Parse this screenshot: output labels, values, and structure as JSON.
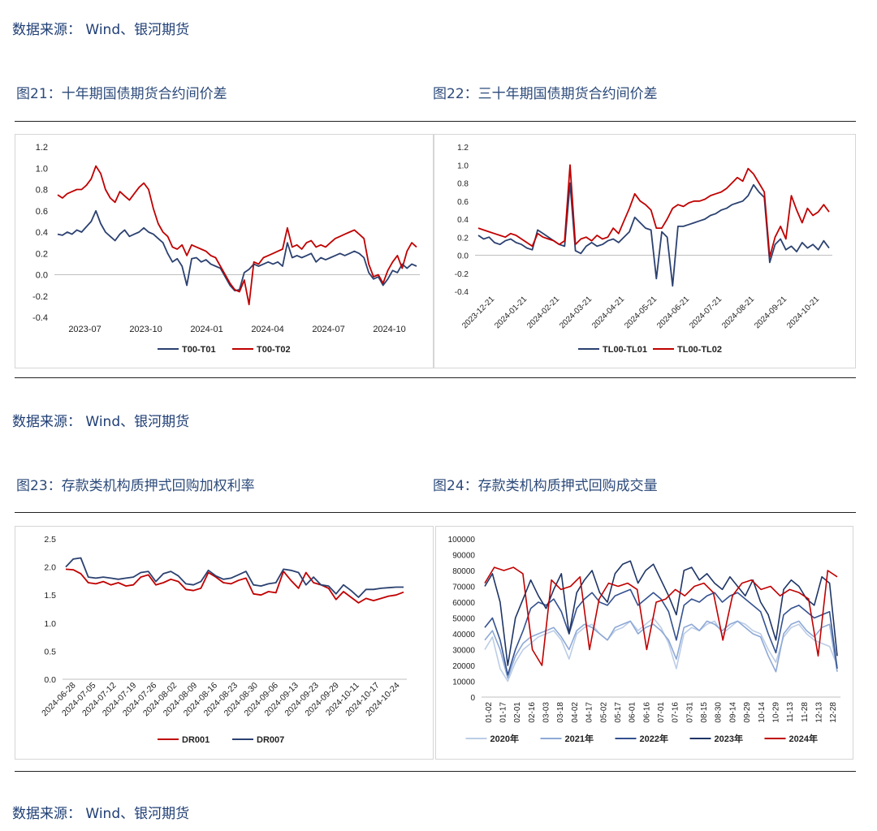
{
  "source_label": "数据来源：  Wind、银河期货",
  "figures": {
    "fig21_title": "图21：十年期国债期货合约间价差",
    "fig22_title": "图22：三十年期国债期货合约间价差",
    "fig23_title": "图23：存款类机构质押式回购加权利率",
    "fig24_title": "图24：存款类机构质押式回购成交量"
  },
  "colors": {
    "navy": "#2b4170",
    "red": "#c00000",
    "c2020": "#bccde6",
    "c2021": "#8ea9d6",
    "c2022": "#34518f",
    "c2023": "#1f3566",
    "c2024": "#c00000"
  },
  "chart_data": [
    {
      "id": "fig21",
      "type": "line",
      "ylim": [
        -0.4,
        1.2
      ],
      "yticks": [
        "1.2",
        "1.0",
        "0.8",
        "0.6",
        "0.4",
        "0.2",
        "0.0",
        "-0.2",
        "-0.4"
      ],
      "xticks": [
        "2023-07",
        "2023-10",
        "2024-01",
        "2024-04",
        "2024-07",
        "2024-10"
      ],
      "series": [
        {
          "name": "T00-T01",
          "color": "#2b4170",
          "values": [
            0.38,
            0.37,
            0.4,
            0.38,
            0.42,
            0.4,
            0.45,
            0.5,
            0.6,
            0.48,
            0.4,
            0.36,
            0.32,
            0.38,
            0.42,
            0.36,
            0.38,
            0.4,
            0.44,
            0.4,
            0.38,
            0.34,
            0.3,
            0.2,
            0.12,
            0.15,
            0.08,
            -0.1,
            0.15,
            0.16,
            0.12,
            0.14,
            0.1,
            0.08,
            0.06,
            -0.02,
            -0.1,
            -0.15,
            -0.14,
            0.02,
            0.05,
            0.1,
            0.08,
            0.1,
            0.12,
            0.1,
            0.12,
            0.08,
            0.3,
            0.16,
            0.18,
            0.16,
            0.18,
            0.2,
            0.12,
            0.16,
            0.14,
            0.16,
            0.18,
            0.2,
            0.18,
            0.2,
            0.22,
            0.2,
            0.16,
            0.02,
            -0.04,
            -0.02,
            -0.1,
            -0.04,
            0.04,
            0.02,
            0.1,
            0.06,
            0.1,
            0.08
          ]
        },
        {
          "name": "T00-T02",
          "color": "#c00000",
          "values": [
            0.75,
            0.72,
            0.76,
            0.78,
            0.8,
            0.8,
            0.84,
            0.9,
            1.02,
            0.95,
            0.8,
            0.72,
            0.68,
            0.78,
            0.74,
            0.7,
            0.76,
            0.82,
            0.86,
            0.8,
            0.62,
            0.48,
            0.4,
            0.36,
            0.26,
            0.24,
            0.28,
            0.18,
            0.28,
            0.26,
            0.24,
            0.22,
            0.18,
            0.16,
            0.08,
            0.0,
            -0.08,
            -0.14,
            -0.16,
            -0.05,
            -0.28,
            0.12,
            0.1,
            0.16,
            0.18,
            0.2,
            0.22,
            0.24,
            0.44,
            0.26,
            0.28,
            0.24,
            0.3,
            0.32,
            0.26,
            0.28,
            0.26,
            0.3,
            0.34,
            0.36,
            0.38,
            0.4,
            0.42,
            0.38,
            0.34,
            0.1,
            -0.02,
            0.0,
            -0.08,
            0.04,
            0.12,
            0.18,
            0.06,
            0.22,
            0.3,
            0.26
          ]
        }
      ]
    },
    {
      "id": "fig22",
      "type": "line",
      "ylim": [
        -0.4,
        1.2
      ],
      "yticks": [
        "1.2",
        "1.0",
        "0.8",
        "0.6",
        "0.4",
        "0.2",
        "0.0",
        "-0.2",
        "-0.4"
      ],
      "xticks": [
        "2023-12-21",
        "2024-01-21",
        "2024-02-21",
        "2024-03-21",
        "2024-04-21",
        "2024-05-21",
        "2024-06-21",
        "2024-07-21",
        "2024-08-21",
        "2024-09-21",
        "2024-10-21"
      ],
      "series": [
        {
          "name": "TL00-TL01",
          "color": "#2b4170",
          "values": [
            0.22,
            0.18,
            0.2,
            0.14,
            0.12,
            0.16,
            0.18,
            0.14,
            0.12,
            0.08,
            0.06,
            0.28,
            0.24,
            0.2,
            0.16,
            0.12,
            0.1,
            0.8,
            0.05,
            0.02,
            0.1,
            0.14,
            0.1,
            0.12,
            0.16,
            0.18,
            0.14,
            0.2,
            0.26,
            0.42,
            0.36,
            0.3,
            0.28,
            -0.26,
            0.26,
            0.2,
            -0.34,
            0.32,
            0.32,
            0.34,
            0.36,
            0.38,
            0.4,
            0.44,
            0.46,
            0.5,
            0.52,
            0.56,
            0.58,
            0.6,
            0.66,
            0.78,
            0.7,
            0.64,
            -0.08,
            0.12,
            0.18,
            0.06,
            0.1,
            0.04,
            0.14,
            0.08,
            0.12,
            0.06,
            0.16,
            0.08
          ]
        },
        {
          "name": "TL00-TL02",
          "color": "#c00000",
          "values": [
            0.3,
            0.28,
            0.26,
            0.24,
            0.22,
            0.2,
            0.24,
            0.22,
            0.18,
            0.14,
            0.1,
            0.24,
            0.2,
            0.18,
            0.16,
            0.12,
            0.16,
            1.0,
            0.12,
            0.18,
            0.2,
            0.16,
            0.22,
            0.18,
            0.2,
            0.3,
            0.24,
            0.38,
            0.52,
            0.68,
            0.6,
            0.56,
            0.5,
            0.3,
            0.3,
            0.4,
            0.52,
            0.56,
            0.54,
            0.58,
            0.6,
            0.6,
            0.62,
            0.66,
            0.68,
            0.7,
            0.74,
            0.8,
            0.86,
            0.82,
            0.96,
            0.9,
            0.8,
            0.7,
            -0.02,
            0.2,
            0.32,
            0.18,
            0.66,
            0.5,
            0.36,
            0.52,
            0.44,
            0.48,
            0.56,
            0.48
          ]
        }
      ]
    },
    {
      "id": "fig23",
      "type": "line",
      "ylim": [
        0.0,
        2.5
      ],
      "yticks": [
        "2.5",
        "2.0",
        "1.5",
        "1.0",
        "0.5",
        "0.0"
      ],
      "xticks": [
        "2024-06-28",
        "2024-07-05",
        "2024-07-12",
        "2024-07-19",
        "2024-07-26",
        "2024-08-02",
        "2024-08-09",
        "2024-08-16",
        "2024-08-23",
        "2024-08-30",
        "2024-09-06",
        "2024-09-13",
        "2024-09-23",
        "2024-09-29",
        "2024-10-11",
        "2024-10-17",
        "2024-10-24"
      ],
      "series": [
        {
          "name": "DR001",
          "color": "#c00000",
          "values": [
            1.96,
            1.95,
            1.88,
            1.72,
            1.7,
            1.74,
            1.68,
            1.72,
            1.66,
            1.68,
            1.82,
            1.86,
            1.68,
            1.72,
            1.78,
            1.74,
            1.6,
            1.58,
            1.62,
            1.9,
            1.82,
            1.72,
            1.7,
            1.76,
            1.8,
            1.52,
            1.5,
            1.56,
            1.54,
            1.92,
            1.76,
            1.62,
            1.9,
            1.72,
            1.68,
            1.62,
            1.42,
            1.56,
            1.46,
            1.36,
            1.44,
            1.4,
            1.44,
            1.48,
            1.5,
            1.55
          ]
        },
        {
          "name": "DR007",
          "color": "#2b4170",
          "values": [
            2.0,
            2.14,
            2.16,
            1.82,
            1.8,
            1.82,
            1.8,
            1.78,
            1.8,
            1.82,
            1.9,
            1.92,
            1.74,
            1.88,
            1.92,
            1.84,
            1.7,
            1.68,
            1.74,
            1.94,
            1.84,
            1.78,
            1.8,
            1.86,
            1.92,
            1.68,
            1.66,
            1.7,
            1.72,
            1.96,
            1.94,
            1.9,
            1.68,
            1.82,
            1.68,
            1.66,
            1.52,
            1.68,
            1.58,
            1.46,
            1.6,
            1.6,
            1.62,
            1.63,
            1.64,
            1.64
          ]
        }
      ]
    },
    {
      "id": "fig24",
      "type": "line",
      "ylim": [
        0,
        100000
      ],
      "yticks": [
        "100000",
        "90000",
        "80000",
        "70000",
        "60000",
        "50000",
        "40000",
        "30000",
        "20000",
        "10000",
        "0"
      ],
      "xticks": [
        "01-02",
        "01-17",
        "02-01",
        "02-16",
        "03-03",
        "03-18",
        "04-02",
        "04-17",
        "05-02",
        "05-17",
        "06-01",
        "06-16",
        "07-01",
        "07-16",
        "07-31",
        "08-15",
        "08-30",
        "09-14",
        "09-29",
        "10-14",
        "10-29",
        "11-13",
        "11-28",
        "12-13",
        "12-28"
      ],
      "series": [
        {
          "name": "2020年",
          "color": "#bccde6",
          "values": [
            30000,
            38000,
            18000,
            10000,
            22000,
            30000,
            34000,
            38000,
            40000,
            42000,
            36000,
            24000,
            40000,
            44000,
            46000,
            40000,
            36000,
            42000,
            44000,
            48000,
            42000,
            46000,
            50000,
            44000,
            34000,
            18000,
            40000,
            44000,
            42000,
            46000,
            48000,
            40000,
            44000,
            48000,
            46000,
            42000,
            40000,
            30000,
            22000,
            38000,
            44000,
            46000,
            40000,
            36000,
            34000,
            32000,
            20000
          ]
        },
        {
          "name": "2021年",
          "color": "#8ea9d6",
          "values": [
            36000,
            42000,
            30000,
            12000,
            26000,
            34000,
            38000,
            40000,
            42000,
            44000,
            38000,
            30000,
            42000,
            46000,
            44000,
            40000,
            36000,
            44000,
            46000,
            48000,
            40000,
            44000,
            46000,
            42000,
            36000,
            24000,
            44000,
            46000,
            42000,
            48000,
            46000,
            42000,
            46000,
            48000,
            44000,
            40000,
            38000,
            26000,
            16000,
            40000,
            46000,
            48000,
            42000,
            38000,
            44000,
            46000,
            16000
          ]
        },
        {
          "name": "2022年",
          "color": "#34518f",
          "values": [
            44000,
            50000,
            36000,
            14000,
            30000,
            42000,
            56000,
            60000,
            58000,
            62000,
            54000,
            40000,
            56000,
            62000,
            66000,
            60000,
            58000,
            64000,
            66000,
            68000,
            58000,
            62000,
            66000,
            62000,
            54000,
            36000,
            58000,
            62000,
            60000,
            64000,
            66000,
            60000,
            64000,
            66000,
            62000,
            58000,
            54000,
            40000,
            28000,
            52000,
            56000,
            58000,
            54000,
            50000,
            52000,
            54000,
            18000
          ]
        },
        {
          "name": "2023年",
          "color": "#1f3566",
          "values": [
            70000,
            78000,
            60000,
            20000,
            50000,
            62000,
            74000,
            64000,
            56000,
            68000,
            78000,
            40000,
            66000,
            74000,
            80000,
            66000,
            60000,
            78000,
            84000,
            86000,
            72000,
            80000,
            84000,
            74000,
            64000,
            52000,
            80000,
            82000,
            74000,
            78000,
            72000,
            68000,
            76000,
            70000,
            64000,
            74000,
            60000,
            52000,
            36000,
            68000,
            74000,
            70000,
            62000,
            58000,
            76000,
            72000,
            26000
          ]
        },
        {
          "name": "2024年",
          "color": "#c00000",
          "values": [
            72000,
            82000,
            80000,
            82000,
            78000,
            30000,
            20000,
            74000,
            68000,
            70000,
            76000,
            30000,
            62000,
            72000,
            70000,
            72000,
            68000,
            30000,
            60000,
            62000,
            68000,
            64000,
            70000,
            72000,
            66000,
            36000,
            64000,
            72000,
            74000,
            68000,
            70000,
            64000,
            68000,
            66000,
            62000,
            26000,
            80000,
            76000
          ]
        }
      ]
    }
  ]
}
